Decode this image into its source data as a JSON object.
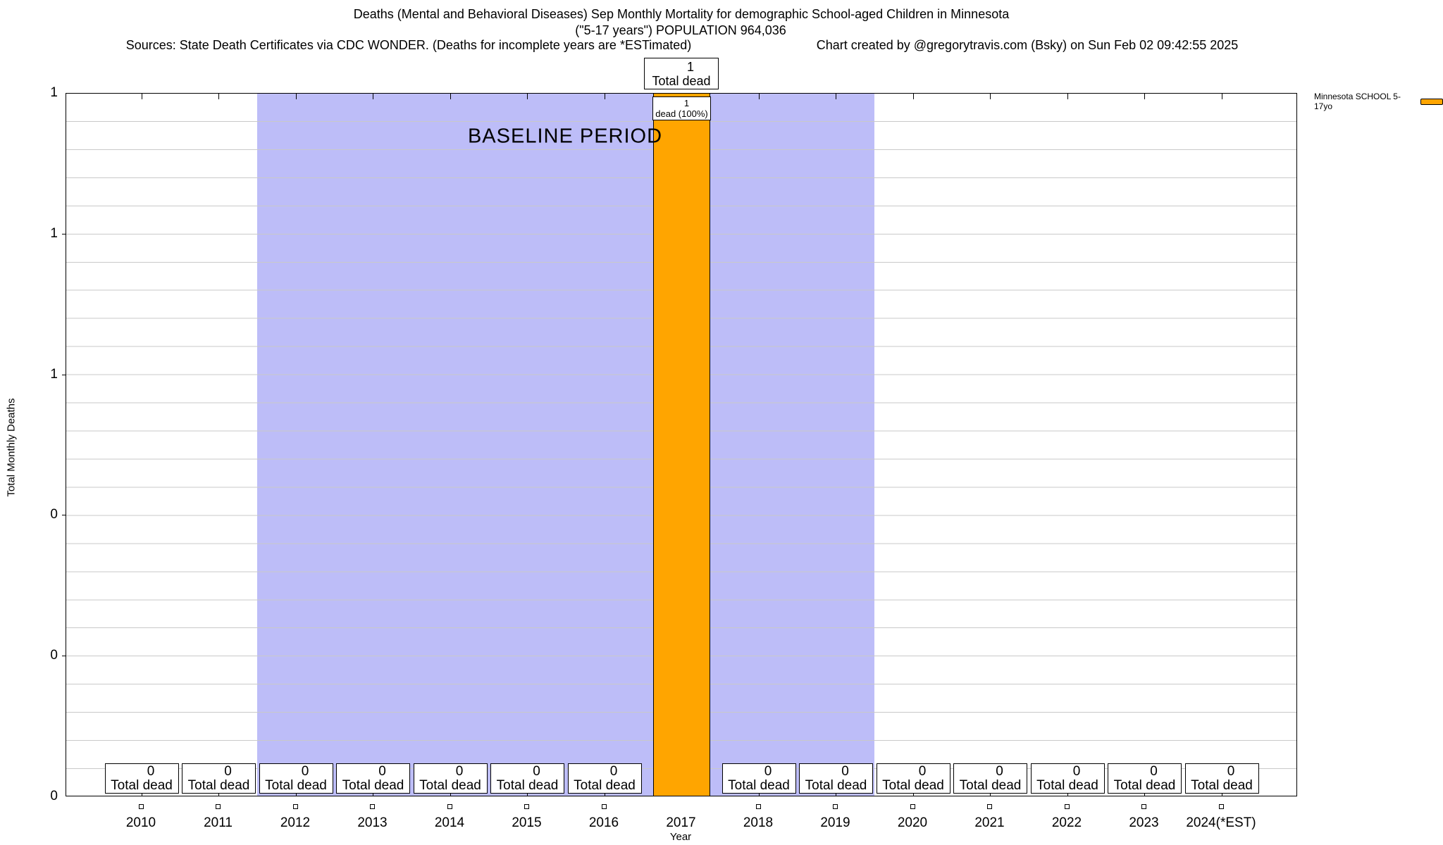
{
  "title": {
    "line1": "Deaths (Mental and Behavioral Diseases) Sep Monthly Mortality for demographic School-aged Children in Minnesota",
    "line2": "(\"5-17 years\") POPULATION 964,036",
    "sources": "Sources: State Death Certificates via CDC WONDER. (Deaths for incomplete years are *ESTimated)",
    "credit": "Chart created by @gregorytravis.com (Bsky) on Sun Feb 02 09:42:55 2025"
  },
  "legend": {
    "label": "Minnesota SCHOOL 5-17yo",
    "swatch_color": "#FFA500"
  },
  "axes": {
    "y_label": "Total Monthly Deaths",
    "x_label": "Year",
    "y_tick_labels": [
      "1",
      "1",
      "1",
      "0",
      "0",
      "0"
    ]
  },
  "baseline": {
    "label": "BASELINE PERIOD",
    "start_year": 2011.5,
    "end_year": 2019.5,
    "color": "#BDBDF8"
  },
  "annotations": {
    "top_box": {
      "value": "1",
      "label": "Total dead"
    },
    "bar_box": {
      "value": "1",
      "label": "dead (100%)"
    }
  },
  "colors": {
    "bar": "#FFA500",
    "baseline_band": "#BDBDF8",
    "grid": "#C9C9C9",
    "axis": "#000000"
  },
  "chart_data": {
    "type": "bar",
    "categories": [
      "2010",
      "2011",
      "2012",
      "2013",
      "2014",
      "2015",
      "2016",
      "2017",
      "2018",
      "2019",
      "2020",
      "2021",
      "2022",
      "2023",
      "2024(*EST)"
    ],
    "values": [
      0,
      0,
      0,
      0,
      0,
      0,
      0,
      1,
      0,
      0,
      0,
      0,
      0,
      0,
      0
    ],
    "series": [
      {
        "name": "Minnesota SCHOOL 5-17yo",
        "values": [
          0,
          0,
          0,
          0,
          0,
          0,
          0,
          1,
          0,
          0,
          0,
          0,
          0,
          0,
          0
        ]
      }
    ],
    "title": "Deaths (Mental and Behavioral Diseases) Sep Monthly Mortality for demographic School-aged Children in Minnesota (\"5-17 years\") POPULATION 964,036",
    "xlabel": "Year",
    "ylabel": "Total Monthly Deaths",
    "ylim": [
      0,
      1
    ],
    "grid": true,
    "legend_position": "top-right",
    "zero_box_label": "Total dead",
    "baseline_period_years": [
      2012,
      2019
    ]
  }
}
